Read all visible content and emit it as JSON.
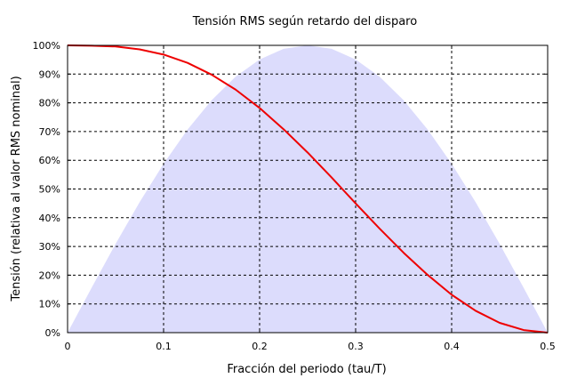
{
  "chart_data": {
    "type": "line",
    "title": "Tensión RMS según retardo del disparo",
    "xlabel": "Fracción del periodo (tau/T)",
    "ylabel": "Tensión (relativa al valor RMS nominal)",
    "xlim": [
      0,
      0.5
    ],
    "ylim": [
      0,
      100
    ],
    "x_ticks": [
      0,
      0.1,
      0.2,
      0.3,
      0.4,
      0.5
    ],
    "x_tick_labels": [
      "0",
      "0.1",
      "0.2",
      "0.3",
      "0.4",
      "0.5"
    ],
    "y_ticks": [
      0,
      10,
      20,
      30,
      40,
      50,
      60,
      70,
      80,
      90,
      100
    ],
    "y_tick_labels": [
      "0%",
      "10%",
      "20%",
      "30%",
      "40%",
      "50%",
      "60%",
      "70%",
      "80%",
      "90%",
      "100%"
    ],
    "grid": true,
    "series": [
      {
        "type": "area",
        "color": "#dcdcfc",
        "x": [
          0,
          0.025,
          0.05,
          0.075,
          0.1,
          0.125,
          0.15,
          0.175,
          0.2,
          0.225,
          0.25,
          0.275,
          0.3,
          0.325,
          0.35,
          0.375,
          0.4,
          0.425,
          0.45,
          0.475,
          0.5
        ],
        "y": [
          0,
          15.6,
          30.9,
          45.4,
          58.8,
          70.7,
          80.9,
          89.1,
          95.1,
          98.8,
          100,
          98.8,
          95.1,
          89.1,
          80.9,
          70.7,
          58.8,
          45.4,
          30.9,
          15.6,
          0
        ]
      },
      {
        "type": "line",
        "color": "#ee0000",
        "x": [
          0,
          0.025,
          0.05,
          0.075,
          0.1,
          0.125,
          0.15,
          0.175,
          0.2,
          0.225,
          0.25,
          0.275,
          0.3,
          0.325,
          0.35,
          0.375,
          0.4,
          0.425,
          0.45,
          0.475,
          0.5
        ],
        "y": [
          100,
          99.9,
          99.6,
          98.6,
          96.8,
          93.9,
          89.8,
          84.6,
          78.2,
          70.8,
          62.7,
          54.0,
          45.0,
          36.2,
          27.8,
          20.1,
          13.2,
          7.6,
          3.4,
          0.9,
          0
        ]
      }
    ]
  }
}
